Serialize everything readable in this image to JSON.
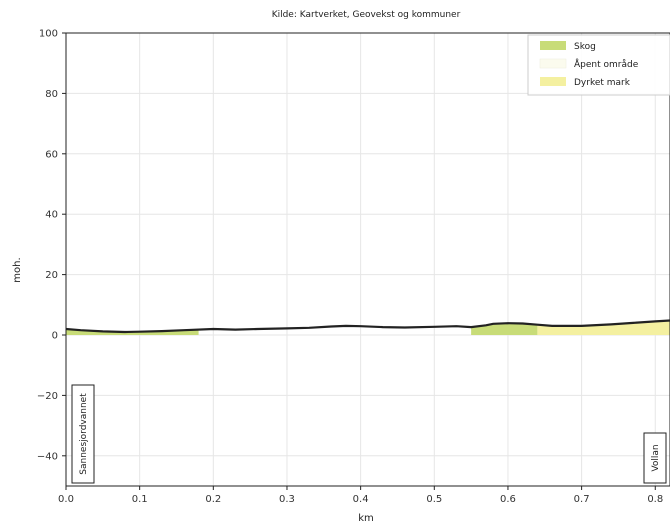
{
  "chart_data": {
    "type": "line",
    "title": "Kilde: Kartverket, Geovekst og kommuner",
    "xlabel": "km",
    "ylabel": "moh.",
    "xlim": [
      0.0,
      0.82
    ],
    "ylim": [
      -50,
      100
    ],
    "xticks": [
      "0.0",
      "0.1",
      "0.2",
      "0.3",
      "0.4",
      "0.5",
      "0.6",
      "0.7",
      "0.8"
    ],
    "yticks": [
      "100",
      "80",
      "60",
      "40",
      "20",
      "0",
      "−20",
      "−40"
    ],
    "xtick_values": [
      0.0,
      0.1,
      0.2,
      0.3,
      0.4,
      0.5,
      0.6,
      0.7,
      0.8
    ],
    "ytick_values": [
      100,
      80,
      60,
      40,
      20,
      0,
      -20,
      -40
    ],
    "grid": true,
    "legend_position": "top-right",
    "series": [
      {
        "name": "Skog",
        "type": "area",
        "color": "#c8dc78",
        "segments": [
          [
            [
              0.0,
              2.0
            ],
            [
              0.06,
              1.0
            ],
            [
              0.12,
              1.2
            ],
            [
              0.18,
              1.8
            ]
          ],
          [
            [
              0.55,
              2.5
            ],
            [
              0.58,
              3.6
            ],
            [
              0.61,
              3.8
            ],
            [
              0.64,
              3.2
            ]
          ]
        ]
      },
      {
        "name": "Åpent område",
        "type": "area",
        "color": "#fbfbee",
        "segments": []
      },
      {
        "name": "Dyrket mark",
        "type": "area",
        "color": "#f4f0a0",
        "segments": [
          [
            [
              0.64,
              3.2
            ],
            [
              0.7,
              3.0
            ],
            [
              0.76,
              3.6
            ],
            [
              0.82,
              4.8
            ]
          ]
        ]
      }
    ],
    "profile": {
      "x": [
        0.0,
        0.02,
        0.05,
        0.08,
        0.1,
        0.13,
        0.16,
        0.2,
        0.23,
        0.26,
        0.3,
        0.33,
        0.36,
        0.38,
        0.4,
        0.43,
        0.46,
        0.5,
        0.53,
        0.55,
        0.57,
        0.58,
        0.6,
        0.62,
        0.64,
        0.66,
        0.7,
        0.74,
        0.77,
        0.8,
        0.82
      ],
      "y": [
        2.0,
        1.6,
        1.2,
        1.0,
        1.1,
        1.3,
        1.6,
        2.0,
        1.8,
        2.0,
        2.2,
        2.4,
        2.8,
        3.0,
        2.9,
        2.6,
        2.5,
        2.7,
        2.9,
        2.6,
        3.2,
        3.7,
        3.9,
        3.8,
        3.4,
        3.0,
        3.0,
        3.5,
        4.0,
        4.5,
        4.8
      ],
      "color": "#222222"
    },
    "endpoints": {
      "start": "Sannesjordvannet",
      "end": "Vollan"
    }
  }
}
